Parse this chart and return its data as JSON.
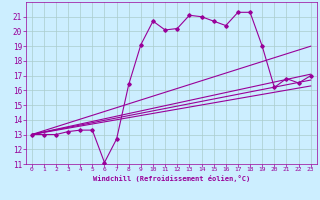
{
  "background_color": "#cceeff",
  "grid_color": "#aacccc",
  "line_color": "#990099",
  "xlim": [
    -0.5,
    23.5
  ],
  "ylim": [
    11,
    22
  ],
  "xlabel": "Windchill (Refroidissement éolien,°C)",
  "xticks": [
    0,
    1,
    2,
    3,
    4,
    5,
    6,
    7,
    8,
    9,
    10,
    11,
    12,
    13,
    14,
    15,
    16,
    17,
    18,
    19,
    20,
    21,
    22,
    23
  ],
  "yticks": [
    11,
    12,
    13,
    14,
    15,
    16,
    17,
    18,
    19,
    20,
    21
  ],
  "series0_x": [
    0,
    1,
    2,
    3,
    4,
    5,
    6,
    7,
    8,
    9,
    10,
    11,
    12,
    13,
    14,
    15,
    16,
    17,
    18,
    19,
    20,
    21,
    22,
    23
  ],
  "series0_y": [
    13,
    13,
    13,
    13.2,
    13.3,
    13.3,
    11.1,
    12.7,
    16.4,
    19.1,
    20.7,
    20.1,
    20.2,
    21.1,
    21.0,
    20.7,
    20.4,
    21.3,
    21.3,
    19.0,
    16.2,
    16.8,
    16.5,
    17.0
  ],
  "line1_x": [
    0,
    23
  ],
  "line1_y": [
    13.0,
    19.0
  ],
  "line2_x": [
    0,
    23
  ],
  "line2_y": [
    13.0,
    17.1
  ],
  "line3_x": [
    0,
    23
  ],
  "line3_y": [
    13.0,
    16.7
  ],
  "line4_x": [
    0,
    23
  ],
  "line4_y": [
    13.0,
    16.3
  ]
}
